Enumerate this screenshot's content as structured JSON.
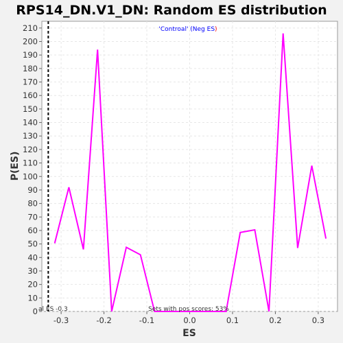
{
  "chart_data": {
    "type": "line",
    "title": "RPS14_DN.V1_DN: Random ES distribution",
    "xlabel": "ES",
    "ylabel": "P(ES)",
    "xlim": [
      -0.345,
      0.345
    ],
    "ylim": [
      0,
      215
    ],
    "xticks": [
      -0.3,
      -0.2,
      -0.1,
      0.0,
      0.1,
      0.2,
      0.3
    ],
    "xtick_labels": [
      "-0.3",
      "-0.2",
      "-0.1",
      "0.0",
      "0.1",
      "0.2",
      "0.3"
    ],
    "yticks": [
      0,
      10,
      20,
      30,
      40,
      50,
      60,
      70,
      80,
      90,
      100,
      110,
      120,
      130,
      140,
      150,
      160,
      170,
      180,
      190,
      200,
      210
    ],
    "grid": true,
    "series": [
      {
        "color": "#ff00ff",
        "x": [
          -0.315,
          -0.282,
          -0.248,
          -0.215,
          -0.182,
          -0.148,
          -0.115,
          -0.082,
          -0.048,
          -0.015,
          0.018,
          0.052,
          0.085,
          0.118,
          0.152,
          0.185,
          0.218,
          0.252,
          0.285,
          0.318
        ],
        "y": [
          50.5,
          92,
          46,
          194,
          0,
          47.5,
          42,
          0,
          0,
          0,
          0,
          0,
          0,
          58.5,
          60.5,
          0,
          206,
          47,
          108,
          54
        ]
      }
    ],
    "actual_es": -0.33,
    "legend": {
      "text_prefix": "'Controal' (Neg ES",
      "text_suffix": ")",
      "prefix_color": "#0000ff",
      "suffix_color": "#ff0000"
    },
    "annotations": {
      "es_label": "al ES -0.3",
      "pos_scores": "Sets with pos scores: 53%"
    }
  }
}
